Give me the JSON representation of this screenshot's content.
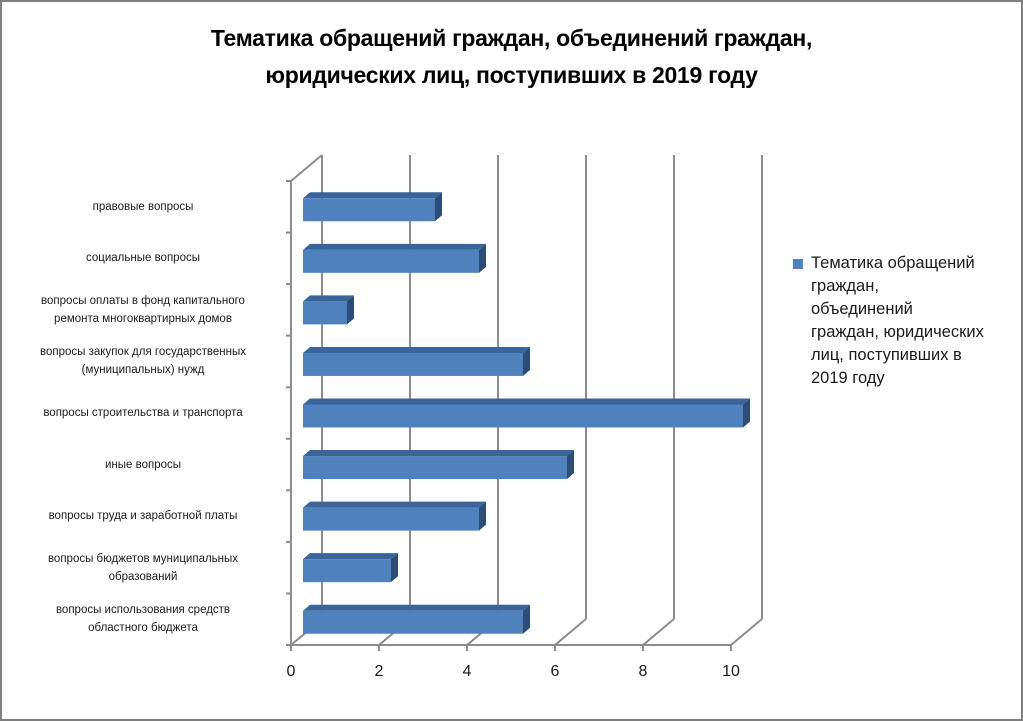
{
  "chart_data": {
    "type": "bar",
    "orientation": "horizontal",
    "style": "3d-clustered",
    "title": "Тематика обращений граждан, объединений граждан, юридических лиц, поступивших в 2019 году",
    "title_lines": [
      "Тематика обращений граждан, объединений граждан,",
      "юридических лиц, поступивших в 2019 году"
    ],
    "xlabel": "",
    "ylabel": "",
    "categories": [
      "правовые вопросы",
      "социальные вопросы",
      "вопросы оплаты в фонд капитального ремонта многоквартирных домов",
      "вопросы закупок для государственных (муниципальных) нужд",
      "вопросы строительства и транспорта",
      "иные вопросы",
      "вопросы труда и заработной платы",
      "вопросы бюджетов муниципальных образований",
      "вопросы использования средств областного бюджета"
    ],
    "category_label_lines": [
      [
        "правовые вопросы"
      ],
      [
        "социальные вопросы"
      ],
      [
        "вопросы оплаты в фонд капитального",
        "ремонта многоквартирных домов"
      ],
      [
        "вопросы закупок для государственных",
        "(муниципальных) нужд"
      ],
      [
        "вопросы строительства и транспорта"
      ],
      [
        "иные вопросы"
      ],
      [
        "вопросы труда и заработной платы"
      ],
      [
        "вопросы бюджетов муниципальных",
        "образований"
      ],
      [
        "вопросы использования средств",
        "областного бюджета"
      ]
    ],
    "series": [
      {
        "name": "Тематика обращений граждан, объединений граждан, юридических лиц, поступивших в 2019 году",
        "color": "#4f81bd",
        "values": [
          3,
          4,
          1,
          5,
          10,
          6,
          4,
          2,
          5
        ]
      }
    ],
    "xlim": [
      0,
      10
    ],
    "x_ticks": [
      0,
      2,
      4,
      6,
      8,
      10
    ],
    "x_tick_labels": [
      "0",
      "2",
      "4",
      "6",
      "8",
      "10"
    ],
    "grid": true,
    "legend_position": "right"
  },
  "legend": {
    "lines": [
      "Тематика обращений",
      "граждан,",
      "объединений",
      "граждан, юридических",
      "лиц, поступивших в",
      "2019 году"
    ]
  },
  "colors": {
    "bar_front": "#4f81bd",
    "bar_top": "#3a659b",
    "bar_side": "#2c4d77",
    "axis": "#8c8c8c",
    "frame": "#7f7f7f"
  }
}
